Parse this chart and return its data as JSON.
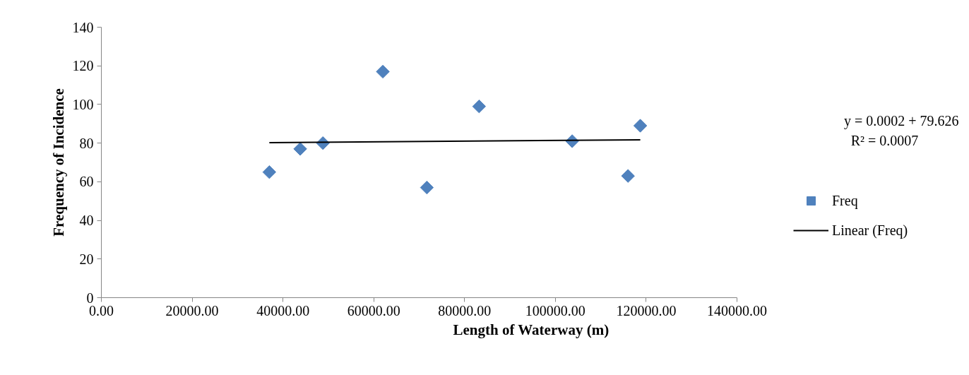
{
  "chart_data": {
    "type": "scatter",
    "xlabel": "Length of Waterway (m)",
    "ylabel": "Frequency of Incidence",
    "xlim": [
      0,
      140000
    ],
    "ylim": [
      0,
      140
    ],
    "xticks": [
      {
        "value": 0,
        "label": "0.00"
      },
      {
        "value": 20000,
        "label": "20000.00"
      },
      {
        "value": 40000,
        "label": "40000.00"
      },
      {
        "value": 60000,
        "label": "60000.00"
      },
      {
        "value": 80000,
        "label": "80000.00"
      },
      {
        "value": 100000,
        "label": "100000.00"
      },
      {
        "value": 120000,
        "label": "120000.00"
      },
      {
        "value": 140000,
        "label": "140000.00"
      }
    ],
    "yticks": [
      0,
      20,
      40,
      60,
      80,
      100,
      120,
      140
    ],
    "grid": false,
    "legend": "right",
    "series": [
      {
        "name": "Freq",
        "marker": "diamond",
        "color": "#4f81bd",
        "x": [
          37000,
          43800,
          48800,
          62000,
          71700,
          83200,
          103700,
          116000,
          118700
        ],
        "values": [
          65,
          77,
          80,
          117,
          57,
          99,
          81,
          63,
          89
        ]
      },
      {
        "name": "Linear (Freq)",
        "type": "line",
        "color": "#000000",
        "x": [
          37000,
          118700
        ],
        "values": [
          80.2,
          81.7
        ]
      }
    ],
    "annotations": [
      "y = 0.0002 + 79.626",
      "R² = 0.0007"
    ]
  }
}
